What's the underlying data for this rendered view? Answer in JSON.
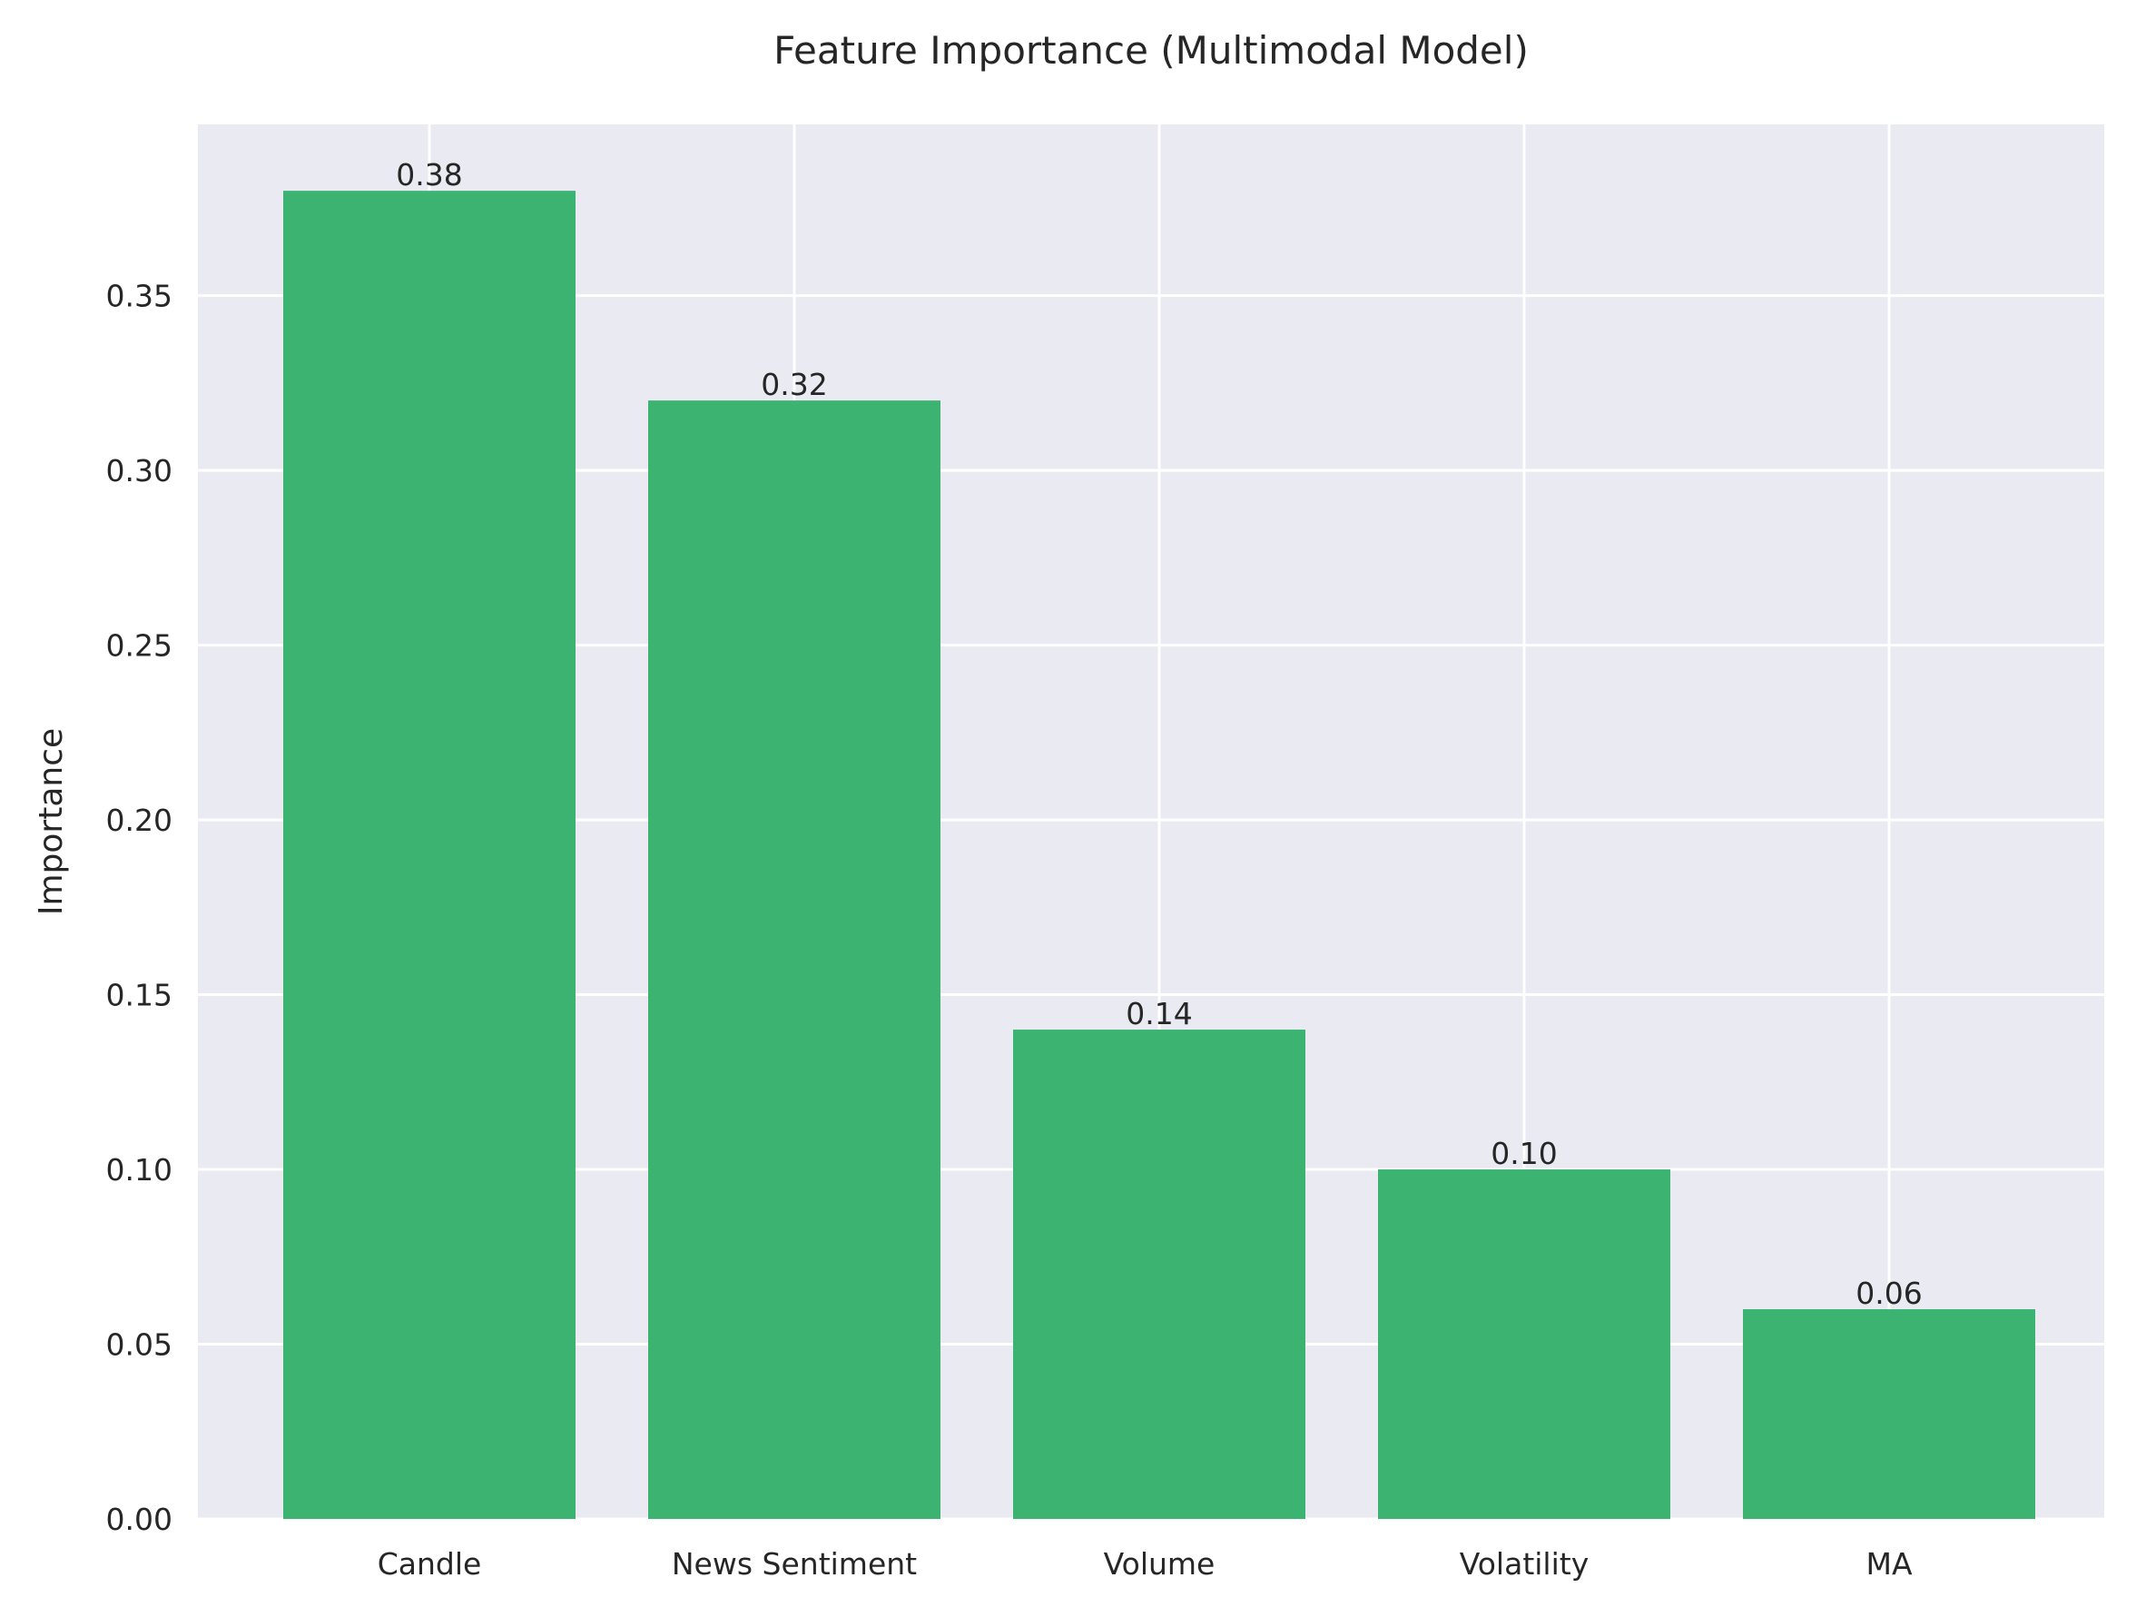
{
  "chart_data": {
    "type": "bar",
    "title": "Feature Importance (Multimodal Model)",
    "xlabel": "",
    "ylabel": "Importance",
    "categories": [
      "Candle",
      "News Sentiment",
      "Volume",
      "Volatility",
      "MA"
    ],
    "values": [
      0.38,
      0.32,
      0.14,
      0.1,
      0.06
    ],
    "value_labels": [
      "0.38",
      "0.32",
      "0.14",
      "0.10",
      "0.06"
    ],
    "ylim": [
      0,
      0.399
    ],
    "yticks": [
      0.0,
      0.05,
      0.1,
      0.15,
      0.2,
      0.25,
      0.3,
      0.35
    ],
    "ytick_labels": [
      "0.00",
      "0.05",
      "0.10",
      "0.15",
      "0.20",
      "0.25",
      "0.30",
      "0.35"
    ],
    "grid": true,
    "colors": {
      "bar": "#3cb371",
      "plot_background": "#eaeaf2",
      "grid": "#ffffff"
    }
  }
}
